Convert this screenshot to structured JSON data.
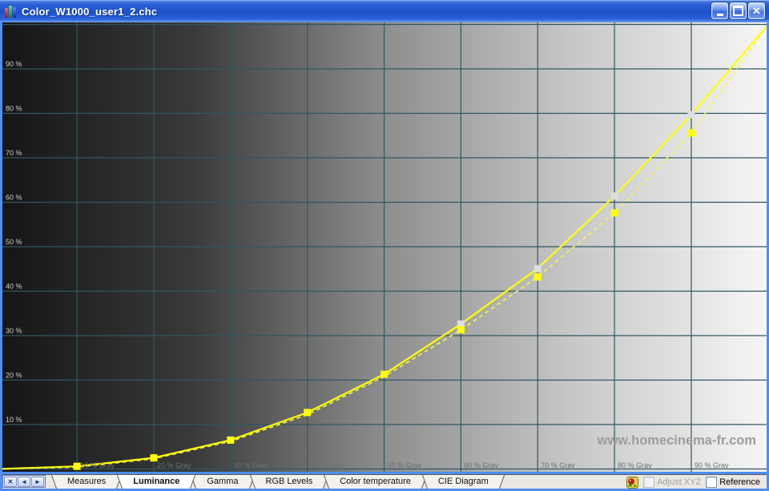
{
  "window": {
    "title": "Color_W1000_user1_2.chc",
    "controls": {
      "minimize": "minimize",
      "maximize": "maximize",
      "close_glyph": "✕"
    }
  },
  "chart_data": {
    "type": "line",
    "x_unit": "% Gray",
    "xlim": [
      0,
      100
    ],
    "ylim": [
      0,
      100
    ],
    "grid": true,
    "grid_color": "#2e5860",
    "x": [
      0,
      10,
      20,
      30,
      40,
      50,
      60,
      70,
      80,
      90,
      100
    ],
    "series": [
      {
        "name": "solid-curve",
        "style": "solid",
        "color": "#ffff00",
        "values": [
          0,
          0.6,
          2.5,
          6.5,
          12.7,
          21.3,
          32.6,
          45.1,
          61.4,
          79.7,
          100
        ]
      },
      {
        "name": "dashed-curve",
        "style": "dashed",
        "color": "#f6f64e",
        "values": [
          0,
          0.4,
          2.3,
          6.2,
          12.2,
          20.8,
          31.3,
          43.2,
          57.6,
          75.6,
          100
        ]
      }
    ],
    "markers": {
      "yellow": {
        "color": "#ffff00",
        "points": [
          [
            10,
            0.6
          ],
          [
            20,
            2.5
          ],
          [
            30,
            6.5
          ],
          [
            40,
            12.7
          ],
          [
            50,
            21.3
          ],
          [
            60,
            31.3
          ],
          [
            70,
            43.2
          ],
          [
            80,
            57.6
          ],
          [
            90,
            75.6
          ]
        ]
      },
      "light": {
        "color": "#dedede",
        "points": [
          [
            60,
            32.6
          ],
          [
            70,
            45.1
          ],
          [
            80,
            61.4
          ],
          [
            90,
            79.7
          ]
        ]
      }
    },
    "y_tick_labels": [
      "90 %",
      "80 %",
      "70 %",
      "60 %",
      "50 %",
      "40 %",
      "30 %",
      "20 %",
      "10 %"
    ],
    "y_tick_values": [
      90,
      80,
      70,
      60,
      50,
      40,
      30,
      20,
      10
    ],
    "x_tick_labels": [
      "10 % Gray",
      "20 % Gray",
      "30 % Gray",
      "40 % Gray",
      "50 % Gray",
      "60 % Gray",
      "70 % Gray",
      "80 % Gray",
      "90 % Gray"
    ],
    "x_tick_values": [
      10,
      20,
      30,
      40,
      50,
      60,
      70,
      80,
      90
    ],
    "watermark": "www.homecinema-fr.com"
  },
  "tab_bar": {
    "nav": [
      {
        "name": "close",
        "glyph": "✕"
      },
      {
        "name": "previous",
        "glyph": "◄"
      },
      {
        "name": "next",
        "glyph": "►"
      }
    ],
    "tabs": [
      {
        "label": "Measures",
        "active": false
      },
      {
        "label": "Luminance",
        "active": true
      },
      {
        "label": "Gamma",
        "active": false
      },
      {
        "label": "RGB Levels",
        "active": false
      },
      {
        "label": "Color temperature",
        "active": false
      },
      {
        "label": "CIE Diagram",
        "active": false
      }
    ]
  },
  "status_bar": {
    "adjust_xyz_label": "Adjust XYZ",
    "adjust_xyz_checked": false,
    "adjust_xyz_enabled": false,
    "reference_label": "Reference",
    "reference_checked": false
  }
}
